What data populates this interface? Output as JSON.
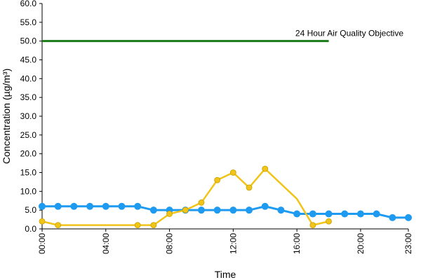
{
  "chart_data": {
    "type": "line",
    "title": "",
    "xlabel": "Time",
    "ylabel": "Concentration (µg/m³)",
    "ylim": [
      0,
      60
    ],
    "yticks": [
      "0.0",
      "5.0",
      "10.0",
      "15.0",
      "20.0",
      "25.0",
      "30.0",
      "35.0",
      "40.0",
      "45.0",
      "50.0",
      "55.0",
      "60.0"
    ],
    "xlim": [
      0,
      23
    ],
    "xticks": [
      {
        "hour": 0,
        "label": "00:00"
      },
      {
        "hour": 4,
        "label": "04:00"
      },
      {
        "hour": 8,
        "label": "08:00"
      },
      {
        "hour": 12,
        "label": "12:00"
      },
      {
        "hour": 16,
        "label": "16:00"
      },
      {
        "hour": 20,
        "label": "20:00"
      },
      {
        "hour": 23,
        "label": "23:00"
      }
    ],
    "grid": false,
    "legend": false,
    "series": [
      {
        "color": "#1e9bf0",
        "x": [
          0,
          1,
          2,
          3,
          4,
          5,
          6,
          7,
          8,
          9,
          10,
          11,
          12,
          13,
          14,
          15,
          16,
          17,
          18,
          19,
          20,
          21,
          22,
          23
        ],
        "values": [
          6,
          6,
          6,
          6,
          6,
          6,
          6,
          5,
          5,
          5,
          5,
          5,
          5,
          5,
          6,
          5,
          4,
          4,
          4,
          4,
          4,
          4,
          3,
          3
        ]
      },
      {
        "color": "#f0c419",
        "segments": [
          {
            "x": [
              0,
              1,
              6,
              7,
              8,
              9,
              10,
              11,
              12,
              13,
              14,
              16,
              17,
              18
            ],
            "values": [
              2,
              1,
              1,
              1,
              4,
              5,
              7,
              13,
              15,
              11,
              16,
              8,
              1,
              2
            ]
          }
        ],
        "x": [
          0,
          1,
          6,
          7,
          8,
          9,
          10,
          11,
          12,
          13,
          14,
          16,
          17,
          18
        ],
        "values": [
          2,
          1,
          1,
          1,
          4,
          5,
          7,
          13,
          15,
          11,
          16,
          8,
          1,
          2
        ],
        "markers_at": [
          0,
          1,
          6,
          7,
          8,
          9,
          10,
          11,
          12,
          13,
          14,
          17,
          18
        ]
      }
    ],
    "reference_line": {
      "label": "24 Hour Air Quality Objective",
      "value": 50,
      "x_range": [
        0,
        18
      ],
      "color": "#1a7a1a"
    }
  }
}
